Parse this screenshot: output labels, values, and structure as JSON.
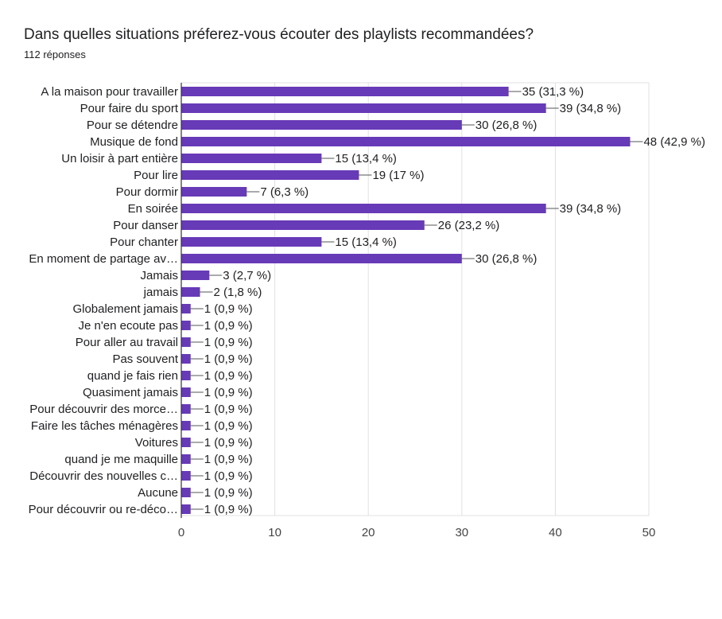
{
  "header": {
    "title": "Dans quelles situations préferez-vous écouter des playlists recommandées?",
    "responses": "112 réponses"
  },
  "chart_data": {
    "type": "bar",
    "orientation": "horizontal",
    "title": "Dans quelles situations préferez-vous écouter des playlists recommandées?",
    "subtitle": "112 réponses",
    "categories": [
      "A la maison pour travailler",
      "Pour faire du sport",
      "Pour se détendre",
      "Musique de fond",
      "Un loisir à part entière",
      "Pour lire",
      "Pour dormir",
      "En soirée",
      "Pour danser",
      "Pour chanter",
      "En moment de partage av…",
      "Jamais",
      "jamais",
      "Globalement jamais",
      "Je n'en ecoute pas",
      "Pour aller au travail",
      "Pas souvent",
      "quand je fais rien",
      "Quasiment jamais",
      "Pour découvrir des morce…",
      "Faire les tâches ménagères",
      "Voitures",
      "quand je me maquille",
      "Découvrir des nouvelles c…",
      "Aucune",
      "Pour découvrir ou re-déco…"
    ],
    "values": [
      35,
      39,
      30,
      48,
      15,
      19,
      7,
      39,
      26,
      15,
      30,
      3,
      2,
      1,
      1,
      1,
      1,
      1,
      1,
      1,
      1,
      1,
      1,
      1,
      1,
      1
    ],
    "data_labels": [
      "35 (31,3 %)",
      "39 (34,8 %)",
      "30 (26,8 %)",
      "48 (42,9 %)",
      "15 (13,4 %)",
      "19 (17 %)",
      "7 (6,3 %)",
      "39 (34,8 %)",
      "26 (23,2 %)",
      "15 (13,4 %)",
      "30 (26,8 %)",
      "3 (2,7 %)",
      "2 (1,8 %)",
      "1 (0,9 %)",
      "1 (0,9 %)",
      "1 (0,9 %)",
      "1 (0,9 %)",
      "1 (0,9 %)",
      "1 (0,9 %)",
      "1 (0,9 %)",
      "1 (0,9 %)",
      "1 (0,9 %)",
      "1 (0,9 %)",
      "1 (0,9 %)",
      "1 (0,9 %)",
      "1 (0,9 %)"
    ],
    "xlim": [
      0,
      50
    ],
    "xticks": [
      0,
      10,
      20,
      30,
      40,
      50
    ],
    "xlabel": "",
    "ylabel": "",
    "grid": true,
    "bar_color": "#673ab7",
    "grid_color": "#e0e0e0",
    "axis_color": "#333333"
  }
}
